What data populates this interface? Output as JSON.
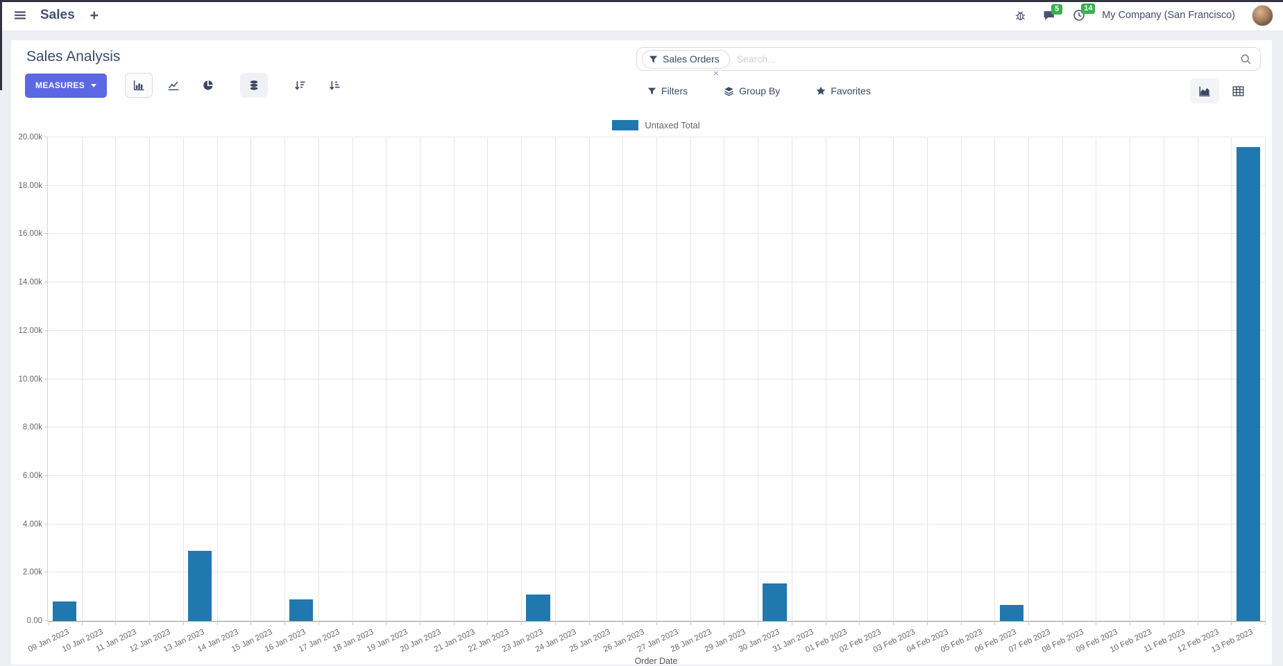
{
  "colors": {
    "accent": "#5c67e3",
    "badge_green": "#37b24d",
    "bar_blue": "#2178af",
    "text": "#44506b"
  },
  "navbar": {
    "app_name": "Sales",
    "new_tab_label": "+",
    "company": "My Company (San Francisco)",
    "badges": {
      "messages": "5",
      "activities": "14"
    }
  },
  "control_panel": {
    "title": "Sales Analysis",
    "measures_label": "MEASURES",
    "search": {
      "facet_label": "Sales Orders",
      "facet_remove": "×",
      "placeholder": "Search..."
    },
    "filters_label": "Filters",
    "group_by_label": "Group By",
    "favorites_label": "Favorites"
  },
  "icons": {
    "menu-icon": "hamburger",
    "bug-icon": "debug bug",
    "chat-icon": "speech bubble",
    "clock-icon": "activity clock",
    "bar-chart-icon": "bar chart (selected)",
    "line-chart-icon": "line chart",
    "pie-chart-icon": "pie chart",
    "stacked-icon": "stacked database (toggled on)",
    "sort-desc-icon": "sort descending",
    "sort-asc-icon": "sort ascending",
    "filter-icon": "funnel",
    "layers-icon": "group-by layers",
    "star-icon": "favorites star",
    "search-icon": "magnifier",
    "graph-view-icon": "area graph view (active)",
    "pivot-view-icon": "pivot table view"
  },
  "chart_data": {
    "type": "bar",
    "title": "",
    "xlabel": "Order Date",
    "ylabel": "",
    "ylim": [
      0,
      20000
    ],
    "ytick_step": 2000,
    "ytick_labels": [
      "0.00",
      "2.00k",
      "4.00k",
      "6.00k",
      "8.00k",
      "10.00k",
      "12.00k",
      "14.00k",
      "16.00k",
      "18.00k",
      "20.00k"
    ],
    "grid": true,
    "legend_position": "top",
    "bar_color": "#2178af",
    "categories": [
      "09 Jan 2023",
      "10 Jan 2023",
      "11 Jan 2023",
      "12 Jan 2023",
      "13 Jan 2023",
      "14 Jan 2023",
      "15 Jan 2023",
      "16 Jan 2023",
      "17 Jan 2023",
      "18 Jan 2023",
      "19 Jan 2023",
      "20 Jan 2023",
      "21 Jan 2023",
      "22 Jan 2023",
      "23 Jan 2023",
      "24 Jan 2023",
      "25 Jan 2023",
      "26 Jan 2023",
      "27 Jan 2023",
      "28 Jan 2023",
      "29 Jan 2023",
      "30 Jan 2023",
      "31 Jan 2023",
      "01 Feb 2023",
      "02 Feb 2023",
      "03 Feb 2023",
      "04 Feb 2023",
      "05 Feb 2023",
      "06 Feb 2023",
      "07 Feb 2023",
      "08 Feb 2023",
      "09 Feb 2023",
      "10 Feb 2023",
      "11 Feb 2023",
      "12 Feb 2023",
      "13 Feb 2023"
    ],
    "series": [
      {
        "name": "Untaxed Total",
        "values": [
          800,
          0,
          0,
          0,
          2900,
          0,
          0,
          900,
          0,
          0,
          0,
          0,
          0,
          0,
          1100,
          0,
          0,
          0,
          0,
          0,
          0,
          1550,
          0,
          0,
          0,
          0,
          0,
          0,
          650,
          0,
          0,
          0,
          0,
          0,
          0,
          19600
        ]
      }
    ]
  }
}
